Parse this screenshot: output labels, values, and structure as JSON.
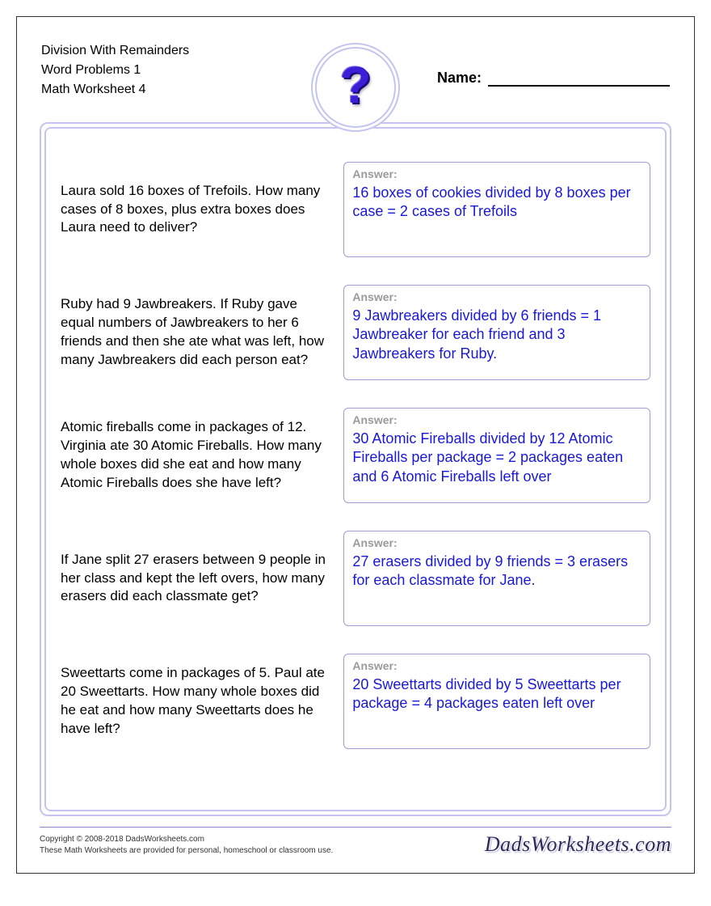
{
  "header": {
    "title_line1": "Division With Remainders",
    "title_line2": "Word Problems 1",
    "title_line3": "Math Worksheet 4",
    "name_label": "Name:"
  },
  "icon": {
    "glyph": "?",
    "color": "#3a1fd6"
  },
  "answer_label": "Answer:",
  "problems": [
    {
      "question": "Laura sold 16 boxes of Trefoils. How many cases of 8 boxes, plus extra boxes does Laura need to deliver?",
      "answer": "16 boxes of cookies divided by 8 boxes per case = 2 cases of Trefoils"
    },
    {
      "question": "Ruby had 9 Jawbreakers. If Ruby gave equal numbers of Jawbreakers to her 6 friends and then she ate what was left, how many Jawbreakers did each person eat?",
      "answer": "9 Jawbreakers divided by 6 friends = 1 Jawbreaker for each friend and 3 Jawbreakers for Ruby."
    },
    {
      "question": "Atomic fireballs come in packages of 12. Virginia ate 30 Atomic Fireballs. How many whole boxes did she eat and how many Atomic Fireballs does she have left?",
      "answer": "30 Atomic Fireballs divided by 12 Atomic Fireballs per package = 2 packages eaten and 6 Atomic Fireballs left over"
    },
    {
      "question": "If Jane split 27 erasers between 9 people in her class and kept the left overs, how many erasers did each classmate get?",
      "answer": "27 erasers divided by 9 friends = 3 erasers for each classmate for Jane."
    },
    {
      "question": "Sweettarts come in packages of 5. Paul ate 20 Sweettarts. How many whole boxes did he eat and how many Sweettarts does he have left?",
      "answer": "20 Sweettarts divided by 5 Sweettarts per package = 4 packages eaten left over"
    }
  ],
  "footer": {
    "copyright": "Copyright © 2008-2018 DadsWorksheets.com",
    "disclaimer": "These Math Worksheets are provided for personal, homeschool or classroom use.",
    "logo": "DadsWorksheets.com"
  },
  "colors": {
    "border_light": "#c4c4f0",
    "answer_border": "#9f9fd6",
    "answer_text": "#1818d8",
    "answer_label": "#9a9a9a",
    "page_border": "#333333"
  }
}
